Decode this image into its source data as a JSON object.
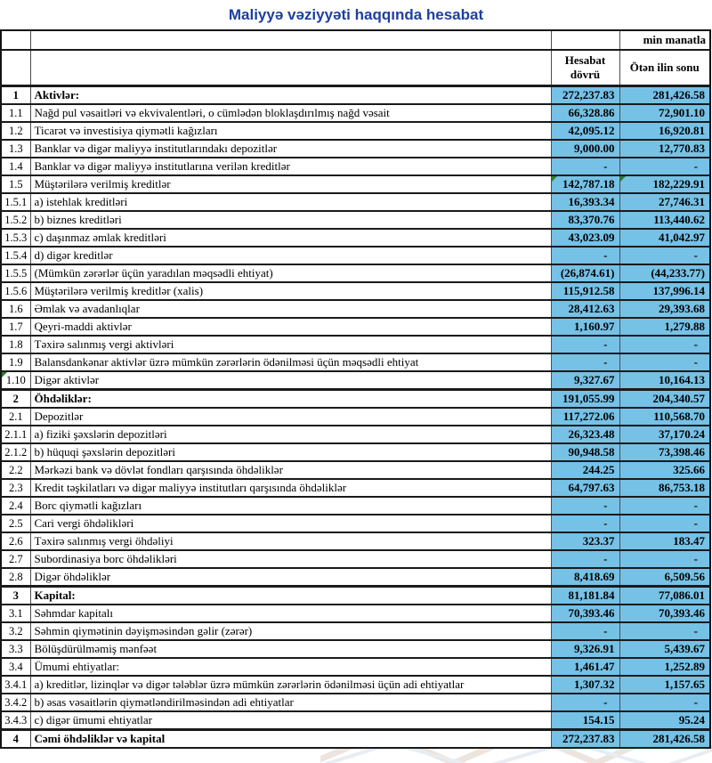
{
  "title": "Maliyyə vəziyyəti haqqında hesabat",
  "unit_note": "min manatla",
  "header": {
    "period_col": "Hesabat dövrü",
    "prior_col": "Ötən ilin sonu"
  },
  "colors": {
    "cell_fill": "#76c1e6",
    "title_blue": "#1e3fa0",
    "flag_green": "#2e7d32",
    "watermark_beige": "#ece4dd",
    "watermark_blue": "#e7edf2"
  },
  "icons": {
    "formula_flag": "excel-formula-flag-triangle"
  },
  "rows": [
    {
      "no": "1",
      "label": "Aktivlər:",
      "v1": "272,237.83",
      "v2": "281,426.58",
      "section": true
    },
    {
      "no": "1.1",
      "label": "Nağd pul vəsaitləri və  ekvivalentləri, o cümlədən bloklaşdırılmış nağd vəsait",
      "v1": "66,328.86",
      "v2": "72,901.10"
    },
    {
      "no": "1.2",
      "label": "Ticarət və investisiya qiymətli kağızları",
      "v1": "42,095.12",
      "v2": "16,920.81"
    },
    {
      "no": "1.3",
      "label": "Banklar və digər maliyyə institutlarındakı depozitlər",
      "v1": "9,000.00",
      "v2": "12,770.83"
    },
    {
      "no": "1.4",
      "label": "Banklar və digər maliyyə institutlarına verilən kreditlər",
      "v1": "-",
      "v2": "-"
    },
    {
      "no": "1.5",
      "label": "Müştərilərə verilmiş kreditlər",
      "v1": "142,787.18",
      "v2": "182,229.91",
      "flags": [
        "v1",
        "v2"
      ]
    },
    {
      "no": "1.5.1",
      "label": "a) istehlak kreditləri",
      "v1": "16,393.34",
      "v2": "27,746.31"
    },
    {
      "no": "1.5.2",
      "label": "b) biznes kreditləri",
      "v1": "83,370.76",
      "v2": "113,440.62"
    },
    {
      "no": "1.5.3",
      "label": "c) daşınmaz əmlak kreditləri",
      "v1": "43,023.09",
      "v2": "41,042.97"
    },
    {
      "no": "1.5.4",
      "label": "d) digər kreditlər",
      "v1": "-",
      "v2": "-"
    },
    {
      "no": "1.5.5",
      "label": "(Mümkün zərərlər üçün yaradılan məqsədli ehtiyat)",
      "v1": "(26,874.61)",
      "v2": "(44,233.77)"
    },
    {
      "no": "1.5.6",
      "label": "Müştərilərə verilmiş kreditlər (xalis)",
      "v1": "115,912.58",
      "v2": "137,996.14"
    },
    {
      "no": "1.6",
      "label": "Əmlak və avadanlıqlar",
      "v1": "28,412.63",
      "v2": "29,393.68"
    },
    {
      "no": "1.7",
      "label": "Qeyri-maddi aktivlər",
      "v1": "1,160.97",
      "v2": "1,279.88"
    },
    {
      "no": "1.8",
      "label": "Təxirə salınmış vergi aktivləri",
      "v1": "-",
      "v2": "-"
    },
    {
      "no": "1.9",
      "label": "Balansdankənar aktivlər üzrə mümkün zərərlərin ödənilməsi üçün məqsədli ehtiyat",
      "v1": "-",
      "v2": "-"
    },
    {
      "no": "1.10",
      "label": "Digər aktivlər",
      "v1": "9,327.67",
      "v2": "10,164.13",
      "flags": [
        "no"
      ]
    },
    {
      "no": "2",
      "label": "Öhdəliklər:",
      "v1": "191,055.99",
      "v2": "204,340.57",
      "section": true
    },
    {
      "no": "2.1",
      "label": "Depozitlər",
      "v1": "117,272.06",
      "v2": "110,568.70"
    },
    {
      "no": "2.1.1",
      "label": "a) fiziki şəxslərin depozitləri",
      "v1": "26,323.48",
      "v2": "37,170.24"
    },
    {
      "no": "2.1.2",
      "label": "b) hüquqi şəxslərin depozitləri",
      "v1": "90,948.58",
      "v2": "73,398.46"
    },
    {
      "no": "2.2",
      "label": "Mərkəzi bank və dövlət fondları qarşısında öhdəliklər",
      "v1": "244.25",
      "v2": "325.66"
    },
    {
      "no": "2.3",
      "label": "Kredit təşkilatları və digər maliyyə institutları qarşısında öhdəliklər",
      "v1": "64,797.63",
      "v2": "86,753.18"
    },
    {
      "no": "2.4",
      "label": "Borc qiymətli kağızları",
      "v1": "-",
      "v2": "-"
    },
    {
      "no": "2.5",
      "label": "Cari vergi öhdəlikləri",
      "v1": "-",
      "v2": "-"
    },
    {
      "no": "2.6",
      "label": "Təxirə salınmış vergi öhdəliyi",
      "v1": "323.37",
      "v2": "183.47"
    },
    {
      "no": "2.7",
      "label": "Subordinasiya borc öhdəlikləri",
      "v1": "-",
      "v2": "-"
    },
    {
      "no": "2.8",
      "label": "Digər öhdəliklər",
      "v1": "8,418.69",
      "v2": "6,509.56"
    },
    {
      "no": "3",
      "label": "Kapital:",
      "v1": "81,181.84",
      "v2": "77,086.01",
      "section": true
    },
    {
      "no": "3.1",
      "label": "Səhmdar kapitalı",
      "v1": "70,393.46",
      "v2": "70,393.46"
    },
    {
      "no": "3.2",
      "label": "Səhmin qiymətinin dəyişməsindən gəlir (zərər)",
      "v1": "-",
      "v2": "-"
    },
    {
      "no": "3.3",
      "label": "Bölüşdürülməmiş mənfəət",
      "v1": "9,326.91",
      "v2": "5,439.67"
    },
    {
      "no": "3.4",
      "label": "Ümumi ehtiyatlar:",
      "v1": "1,461.47",
      "v2": "1,252.89"
    },
    {
      "no": "3.4.1",
      "label": "a) kreditlər, lizinqlər və digər tələblər üzrə mümkün zərərlərin ödənilməsi üçün adi ehtiyatlar",
      "v1": "1,307.32",
      "v2": "1,157.65"
    },
    {
      "no": "3.4.2",
      "label": "b) əsas vəsaitlərin qiymətləndirilməsindən adi ehtiyatlar",
      "v1": "-",
      "v2": "-"
    },
    {
      "no": "3.4.3",
      "label": "c) digər ümumi ehtiyatlar",
      "v1": "154.15",
      "v2": "95.24"
    },
    {
      "no": "4",
      "label": "Cəmi öhdəliklər və kapital",
      "v1": "272,237.83",
      "v2": "281,426.58",
      "section": true
    }
  ]
}
